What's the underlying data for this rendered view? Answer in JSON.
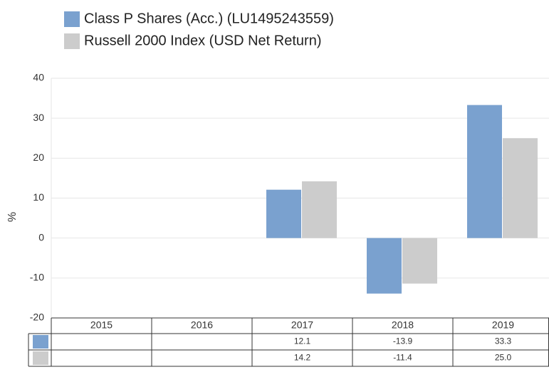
{
  "chart_data": {
    "type": "bar",
    "y_label": "%",
    "categories": [
      "2015",
      "2016",
      "2017",
      "2018",
      "2019"
    ],
    "series": [
      {
        "name": "Class P Shares (Acc.) (LU1495243559)",
        "color": "#7aa1cf",
        "values": [
          null,
          null,
          12.1,
          -13.9,
          33.3
        ]
      },
      {
        "name": "Russell 2000 Index (USD Net Return)",
        "color": "#cccccc",
        "values": [
          null,
          null,
          14.2,
          -11.4,
          25
        ],
        "value_labels": [
          null,
          null,
          "14.2",
          "-11.4",
          "25.0"
        ]
      }
    ],
    "ylim": [
      -20,
      40
    ],
    "yticks": [
      -20,
      -10,
      0,
      10,
      20,
      30,
      40
    ],
    "grid": true
  }
}
